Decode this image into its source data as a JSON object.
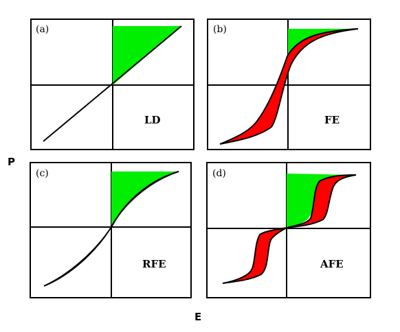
{
  "axes": {
    "y_label": "P",
    "x_label": "E"
  },
  "panels": [
    {
      "tag": "(a)",
      "type": "LD"
    },
    {
      "tag": "(b)",
      "type": "FE"
    },
    {
      "tag": "(c)",
      "type": "RFE"
    },
    {
      "tag": "(d)",
      "type": "AFE"
    }
  ],
  "colors": {
    "frame": "#000000",
    "energy_storage": "#00ee00",
    "energy_loss": "#ff0000",
    "curve": "#000000"
  }
}
